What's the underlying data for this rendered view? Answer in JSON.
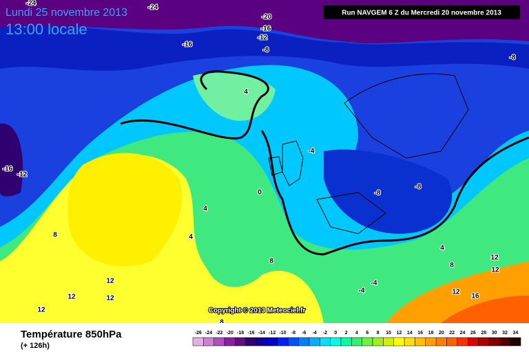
{
  "header": {
    "date": "Lundi 25 novembre 2013",
    "time": "13:00 locale",
    "run": "Run NAVGEM 6 Z du Mercredi 20 novembre 2013"
  },
  "map": {
    "contour_labels": [
      -24,
      -24,
      -20,
      -16,
      -12,
      -8,
      -16,
      -8,
      4,
      -4,
      -16,
      -12,
      -8,
      -8,
      0,
      4,
      4,
      8,
      8,
      4,
      8,
      12,
      12,
      12,
      12,
      12,
      -4,
      -4,
      12,
      16,
      12,
      8
    ],
    "copyright": "Copyright © 2013 Meteociel.fr"
  },
  "footer": {
    "title": "Température 850hPa",
    "subtitle": "(+ 126h)"
  },
  "scale": {
    "ticks": [
      -26,
      -24,
      -22,
      -20,
      -18,
      -16,
      -14,
      -12,
      -10,
      -8,
      -6,
      -4,
      -2,
      0,
      2,
      4,
      6,
      8,
      10,
      12,
      14,
      16,
      18,
      20,
      22,
      24,
      26,
      28,
      30,
      32,
      34
    ],
    "colors": [
      "#e0b0e0",
      "#d080d0",
      "#b050c0",
      "#8a20a0",
      "#601080",
      "#300070",
      "#1000a0",
      "#0000d0",
      "#0020ff",
      "#0050ff",
      "#0080ff",
      "#00b0ff",
      "#00e0ff",
      "#00ffe0",
      "#00ffa0",
      "#30f070",
      "#70f040",
      "#a0f020",
      "#d0f000",
      "#ffff00",
      "#ffe000",
      "#ffc000",
      "#ffa000",
      "#ff8000",
      "#ff6000",
      "#ff3000",
      "#e00000",
      "#b00000",
      "#800000",
      "#500000",
      "#200000"
    ]
  }
}
